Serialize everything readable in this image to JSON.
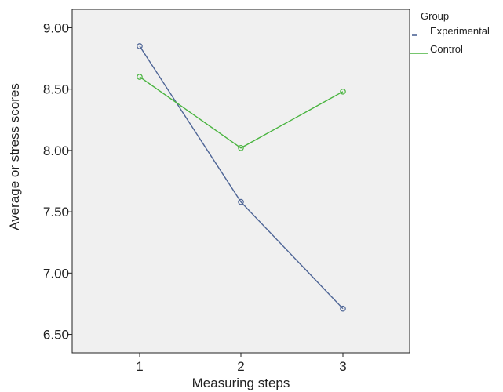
{
  "chart_data": {
    "type": "line",
    "xlabel": "Measuring steps",
    "ylabel": "Average or stress scores",
    "categories": [
      "1",
      "2",
      "3"
    ],
    "ylim": [
      6.35,
      9.15
    ],
    "yticks": [
      "6.50",
      "7.00",
      "7.50",
      "8.00",
      "8.50",
      "9.00"
    ],
    "grid": false,
    "legend_title": "Group",
    "legend_position": "right",
    "plot_background": "#f0f0f0",
    "series": [
      {
        "name": "Experimental",
        "color": "#4e6596",
        "values": [
          8.85,
          7.58,
          6.71
        ]
      },
      {
        "name": "Control",
        "color": "#49b43f",
        "values": [
          8.6,
          8.02,
          8.48
        ]
      }
    ]
  }
}
